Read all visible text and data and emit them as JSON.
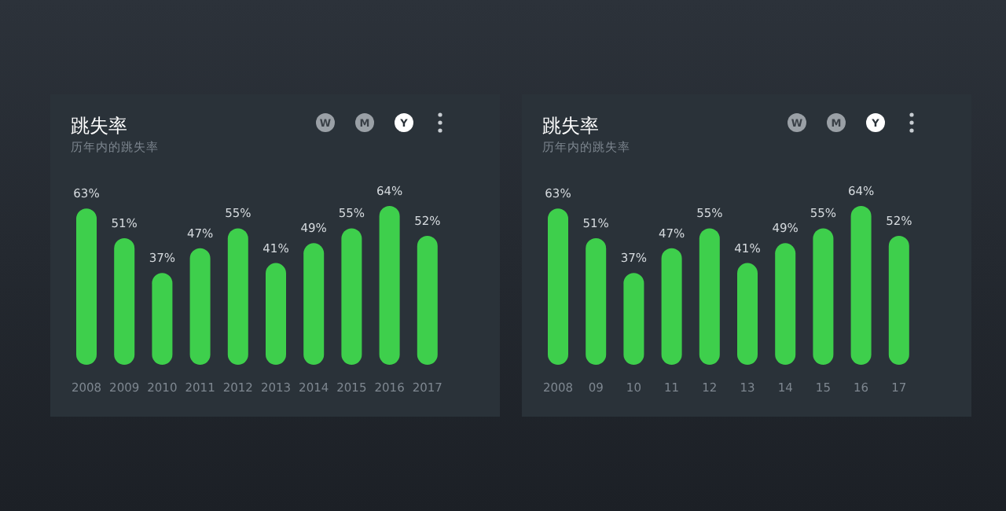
{
  "chart_data": [
    {
      "type": "bar",
      "title": "跳失率",
      "subtitle": "历年内的跳失率",
      "categories": [
        "2008",
        "2009",
        "2010",
        "2011",
        "2012",
        "2013",
        "2014",
        "2015",
        "2016",
        "2017"
      ],
      "values": [
        63,
        51,
        37,
        47,
        55,
        41,
        49,
        55,
        64,
        52
      ],
      "value_labels": [
        "63%",
        "51%",
        "37%",
        "47%",
        "55%",
        "41%",
        "49%",
        "55%",
        "64%",
        "52%"
      ],
      "color": "#3ecf4c",
      "annotations": [
        "W",
        "M",
        "Y"
      ]
    },
    {
      "type": "bar",
      "title": "跳失率",
      "subtitle": "历年内的跳失率",
      "categories": [
        "2008",
        "09",
        "10",
        "11",
        "12",
        "13",
        "14",
        "15",
        "16",
        "17"
      ],
      "values": [
        63,
        51,
        37,
        47,
        55,
        41,
        49,
        55,
        64,
        52
      ],
      "value_labels": [
        "63%",
        "51%",
        "37%",
        "47%",
        "55%",
        "41%",
        "49%",
        "55%",
        "64%",
        "52%"
      ],
      "color": "#3ecf4c",
      "annotations": [
        "W",
        "M",
        "Y"
      ]
    }
  ]
}
